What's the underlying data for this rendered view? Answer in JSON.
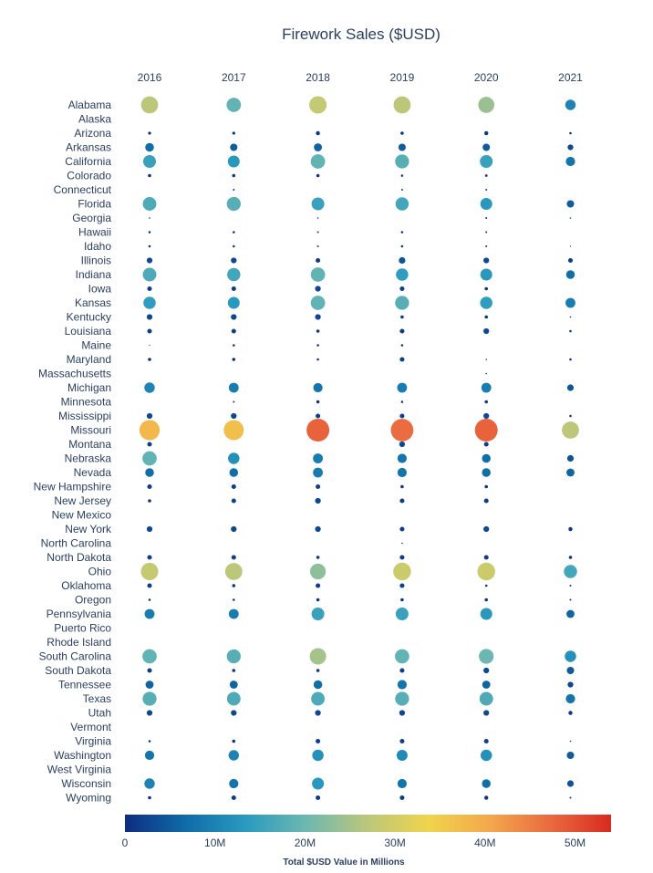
{
  "chart_data": {
    "type": "scatter",
    "title": "Firework Sales ($USD)",
    "x": [
      "2016",
      "2017",
      "2018",
      "2019",
      "2020",
      "2021"
    ],
    "states": [
      "Alabama",
      "Alaska",
      "Arizona",
      "Arkansas",
      "California",
      "Colorado",
      "Connecticut",
      "Florida",
      "Georgia",
      "Hawaii",
      "Idaho",
      "Illinois",
      "Indiana",
      "Iowa",
      "Kansas",
      "Kentucky",
      "Louisiana",
      "Maine",
      "Maryland",
      "Massachusetts",
      "Michigan",
      "Minnesota",
      "Mississippi",
      "Missouri",
      "Montana",
      "Nebraska",
      "Nevada",
      "New Hampshire",
      "New Jersey",
      "New Mexico",
      "New York",
      "North Carolina",
      "North Dakota",
      "Ohio",
      "Oklahoma",
      "Oregon",
      "Pennsylvania",
      "Puerto Rico",
      "Rhode Island",
      "South Carolina",
      "South Dakota",
      "Tennessee",
      "Texas",
      "Utah",
      "Vermont",
      "Virginia",
      "Washington",
      "West Virginia",
      "Wisconsin",
      "Wyoming"
    ],
    "units": "$USD millions",
    "values": [
      [
        27,
        19,
        28,
        27,
        24,
        10
      ],
      [
        0,
        0,
        0,
        0,
        0,
        0
      ],
      [
        0.8,
        0.8,
        1.5,
        1.0,
        1.5,
        0.5
      ],
      [
        7,
        5,
        6,
        5,
        5,
        3
      ],
      [
        15,
        13,
        19,
        18,
        15,
        8
      ],
      [
        1,
        1,
        1,
        0.5,
        0.6,
        0
      ],
      [
        0,
        0.3,
        0,
        0.3,
        0.3,
        0
      ],
      [
        17,
        18,
        15,
        16,
        13,
        5
      ],
      [
        0.2,
        0,
        0.2,
        0,
        0.3,
        0.2
      ],
      [
        0.5,
        0.5,
        0.3,
        0.5,
        0.3,
        0
      ],
      [
        0.5,
        0.5,
        0.3,
        0.5,
        0.3,
        0.1
      ],
      [
        3,
        3,
        2,
        4,
        3,
        2
      ],
      [
        17,
        16,
        19,
        14,
        13,
        7
      ],
      [
        2,
        2,
        3,
        2,
        1,
        0
      ],
      [
        14,
        13,
        19,
        18,
        14,
        9
      ],
      [
        3,
        3,
        3,
        1,
        1,
        0.2
      ],
      [
        2,
        2,
        1,
        2,
        3,
        0.5
      ],
      [
        0.1,
        0.5,
        0.5,
        0.5,
        0,
        0
      ],
      [
        1,
        1,
        0.5,
        2,
        0.2,
        0.5
      ],
      [
        0,
        0,
        0,
        0,
        0.2,
        0
      ],
      [
        10,
        9,
        8,
        9,
        9,
        4
      ],
      [
        0,
        0.3,
        1,
        0.5,
        1,
        0
      ],
      [
        3,
        3,
        2,
        2,
        3,
        0.5
      ],
      [
        38,
        37,
        48,
        47,
        48,
        27
      ],
      [
        2,
        0,
        0,
        3,
        2,
        0
      ],
      [
        19,
        12,
        9,
        8,
        7,
        4
      ],
      [
        7,
        7,
        9,
        8,
        7,
        6
      ],
      [
        2,
        2,
        2,
        1,
        1,
        0
      ],
      [
        1,
        2,
        3,
        2,
        2,
        0
      ],
      [
        0,
        0,
        0,
        0,
        0,
        0
      ],
      [
        3,
        3,
        3,
        2,
        3,
        1.5
      ],
      [
        0,
        0,
        0,
        0.2,
        0,
        0
      ],
      [
        2,
        2,
        1,
        2,
        2,
        1
      ],
      [
        28,
        27,
        23,
        29,
        29,
        16
      ],
      [
        2,
        1,
        2,
        2,
        0.5,
        0.3
      ],
      [
        0.5,
        0.5,
        1,
        1,
        1,
        0.3
      ],
      [
        9,
        9,
        15,
        15,
        13,
        6
      ],
      [
        0,
        0,
        0,
        0,
        0,
        0
      ],
      [
        0,
        0,
        0,
        0,
        0,
        0
      ],
      [
        19,
        18,
        25,
        19,
        20,
        12
      ],
      [
        2,
        1,
        1,
        2,
        3,
        5
      ],
      [
        6,
        6,
        7,
        8,
        6,
        3
      ],
      [
        18,
        17,
        17,
        18,
        17,
        8
      ],
      [
        3,
        3,
        3,
        3,
        3,
        1.5
      ],
      [
        0,
        0,
        0,
        0,
        0,
        0
      ],
      [
        0.5,
        1,
        2,
        2,
        2,
        0.2
      ],
      [
        8,
        10,
        12,
        11,
        12,
        5
      ],
      [
        0,
        0,
        0,
        0,
        0,
        0
      ],
      [
        10,
        8,
        13,
        8,
        7,
        4
      ],
      [
        1,
        2,
        2,
        2,
        1.5,
        0.3
      ]
    ],
    "color_range": [
      0,
      54
    ],
    "colorbar": {
      "ticks": [
        0,
        10,
        20,
        30,
        40,
        50
      ],
      "ticklabels": [
        "0",
        "10M",
        "20M",
        "30M",
        "40M",
        "50M"
      ],
      "title": "Total $USD Value in Millions"
    },
    "colorscale": [
      "#0d2c80",
      "#0f6ca8",
      "#2a9bc0",
      "#6fb8b0",
      "#bcc77a",
      "#f0d44c",
      "#f3a84c",
      "#ea6a40",
      "#d82a20"
    ]
  }
}
